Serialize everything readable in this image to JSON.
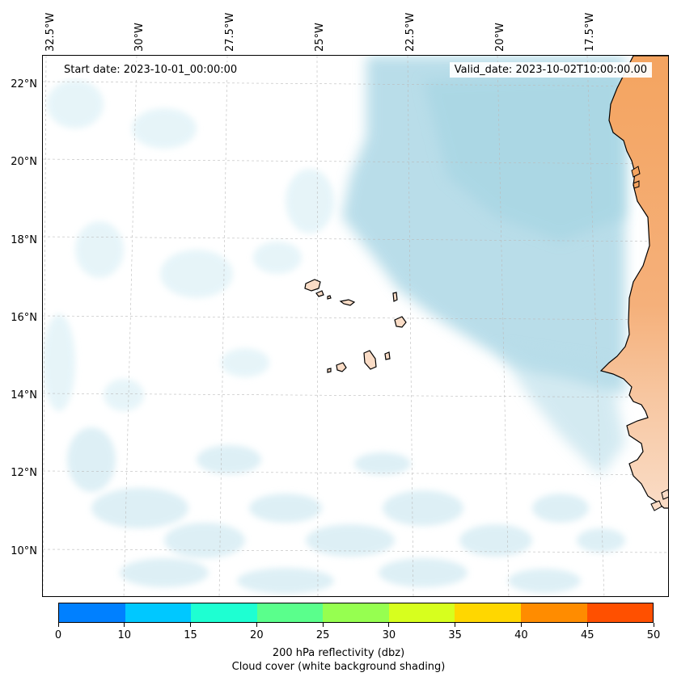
{
  "header": {
    "start_date": "Start date: 2023-10-01_00:00:00",
    "valid_date": "Valid_date: 2023-10-02T10:00:00.00"
  },
  "axes": {
    "lon_labels": [
      "32.5°W",
      "30°W",
      "27.5°W",
      "25°W",
      "22.5°W",
      "20°W",
      "17.5°W"
    ],
    "lat_labels": [
      "22°N",
      "20°N",
      "18°N",
      "16°N",
      "14°N",
      "12°N",
      "10°N"
    ]
  },
  "colorbar": {
    "colors": [
      "#0080ff",
      "#00c8ff",
      "#1effd2",
      "#5aff8c",
      "#96ff50",
      "#d7ff1e",
      "#ffd700",
      "#ff8c00",
      "#ff5000"
    ],
    "ticks": [
      "0",
      "10",
      "15",
      "20",
      "25",
      "30",
      "35",
      "40",
      "45",
      "50"
    ],
    "label_line1": "200 hPa reflectivity (dbz)",
    "label_line2": "Cloud cover (white background shading)"
  },
  "map": {
    "cloud_color": "#add8e6",
    "land_color": "#f4a460",
    "coast_color": "#000000",
    "grid": true
  }
}
